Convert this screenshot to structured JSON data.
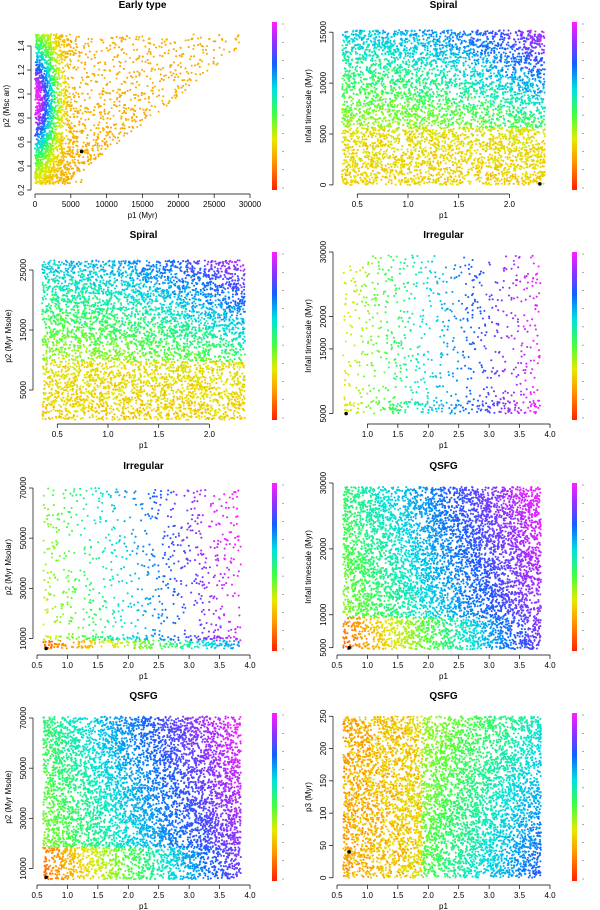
{
  "figure": {
    "description_free": true
  },
  "chart_data": [
    {
      "type": "scatter",
      "title": "Early type",
      "xlabel": "p1 (Myr)",
      "ylabel": "p2 (Msc an)",
      "xlim": [
        0,
        30000
      ],
      "ylim": [
        0.2,
        1.6
      ],
      "xticks": [
        0,
        5000,
        10000,
        15000,
        20000,
        25000,
        30000
      ],
      "xtick_labels": [
        "0",
        "5000",
        "10000",
        "15000",
        "20000",
        "25000",
        "30000"
      ],
      "yticks": [
        0.2,
        0.4,
        0.6,
        0.8,
        1.0,
        1.2,
        1.4
      ],
      "ytick_labels": [
        "0.2",
        "0.4",
        "0.6",
        "0.8",
        "1.0",
        "1.2",
        "1.4"
      ],
      "colorbar": "rainbow",
      "best_fit": [
        6500,
        0.52
      ],
      "seed": 11
    },
    {
      "type": "scatter",
      "title": "Spiral",
      "xlabel": "p1",
      "ylabel": "Infall timescale (Myr)",
      "xlim": [
        0.3,
        2.4
      ],
      "ylim": [
        -500,
        16000
      ],
      "xticks": [
        0.5,
        1.0,
        1.5,
        2.0
      ],
      "xtick_labels": [
        "0.5",
        "1.0",
        "1.5",
        "2.0"
      ],
      "yticks": [
        0,
        5000,
        10000,
        15000
      ],
      "ytick_labels": [
        "0",
        "5000",
        "10000",
        "15000"
      ],
      "colorbar": "rainbow",
      "best_fit": [
        2.3,
        100
      ],
      "seed": 23
    },
    {
      "type": "scatter",
      "title": "Spiral",
      "xlabel": "p1",
      "ylabel": "p2 (Myr Msole)",
      "xlim": [
        0.3,
        2.4
      ],
      "ylim": [
        0,
        28000
      ],
      "xticks": [
        0.5,
        1.0,
        1.5,
        2.0
      ],
      "xtick_labels": [
        "0.5",
        "1.0",
        "1.5",
        "2.0"
      ],
      "yticks": [
        5000,
        15000,
        25000
      ],
      "ytick_labels": [
        "5000",
        "15000",
        "25000"
      ],
      "colorbar": "rainbow",
      "best_fit": null,
      "seed": 37
    },
    {
      "type": "scatter",
      "title": "Irregular",
      "xlabel": "p1",
      "ylabel": "Infall timescale (Myr)",
      "xlim": [
        0.5,
        4.0
      ],
      "ylim": [
        4000,
        30000
      ],
      "xticks": [
        1.0,
        1.5,
        2.0,
        2.5,
        3.0,
        3.5,
        4.0
      ],
      "xtick_labels": [
        "1.0",
        "1.5",
        "2.0",
        "2.5",
        "3.0",
        "3.5",
        "4.0"
      ],
      "yticks": [
        5000,
        15000,
        20000,
        30000
      ],
      "ytick_labels": [
        "5000",
        "15000",
        "20000",
        "30000"
      ],
      "colorbar": "rainbow",
      "best_fit": [
        0.65,
        5000
      ],
      "seed": 41
    },
    {
      "type": "scatter",
      "title": "Irregular",
      "xlabel": "p1",
      "ylabel": "p2 (Myr Msolar)",
      "xlim": [
        0.5,
        4.0
      ],
      "ylim": [
        5000,
        72000
      ],
      "xticks": [
        0.5,
        1.0,
        1.5,
        2.0,
        2.5,
        3.0,
        3.5,
        4.0
      ],
      "xtick_labels": [
        "0.5",
        "1.0",
        "1.5",
        "2.0",
        "2.5",
        "3.0",
        "3.5",
        "4.0"
      ],
      "yticks": [
        10000,
        30000,
        50000,
        70000
      ],
      "ytick_labels": [
        "10000",
        "30000",
        "50000",
        "70000"
      ],
      "colorbar": "rainbow",
      "best_fit": [
        0.65,
        6000
      ],
      "seed": 53
    },
    {
      "type": "scatter",
      "title": "QSFG",
      "xlabel": "p1",
      "ylabel": "Infall timescale (Myr)",
      "xlim": [
        0.5,
        4.0
      ],
      "ylim": [
        4500,
        30000
      ],
      "xticks": [
        0.5,
        1.0,
        1.5,
        2.0,
        2.5,
        3.0,
        3.5,
        4.0
      ],
      "xtick_labels": [
        "0.5",
        "1.0",
        "1.5",
        "2.0",
        "2.5",
        "3.0",
        "3.5",
        "4.0"
      ],
      "yticks": [
        5000,
        10000,
        20000,
        30000
      ],
      "ytick_labels": [
        "5000",
        "10000",
        "20000",
        "30000"
      ],
      "colorbar": "rainbow",
      "best_fit": [
        0.7,
        5000
      ],
      "seed": 67
    },
    {
      "type": "scatter",
      "title": "QSFG",
      "xlabel": "p1",
      "ylabel": "p2 (Myr Msole)",
      "xlim": [
        0.5,
        4.0
      ],
      "ylim": [
        5000,
        72000
      ],
      "xticks": [
        0.5,
        1.0,
        1.5,
        2.0,
        2.5,
        3.0,
        3.5,
        4.0
      ],
      "xtick_labels": [
        "0.5",
        "1.0",
        "1.5",
        "2.0",
        "2.5",
        "3.0",
        "3.5",
        "4.0"
      ],
      "yticks": [
        10000,
        30000,
        50000,
        70000
      ],
      "ytick_labels": [
        "10000",
        "30000",
        "50000",
        "70000"
      ],
      "colorbar": "rainbow",
      "best_fit": [
        0.65,
        6500
      ],
      "seed": 79
    },
    {
      "type": "scatter",
      "title": "QSFG",
      "xlabel": "p1",
      "ylabel": "p3 (Myr)",
      "xlim": [
        0.5,
        4.0
      ],
      "ylim": [
        -5,
        255
      ],
      "xticks": [
        0.5,
        1.0,
        1.5,
        2.0,
        2.5,
        3.0,
        3.5,
        4.0
      ],
      "xtick_labels": [
        "0.5",
        "1.0",
        "1.5",
        "2.0",
        "2.5",
        "3.0",
        "3.5",
        "4.0"
      ],
      "yticks": [
        0,
        50,
        100,
        150,
        200,
        250
      ],
      "ytick_labels": [
        "0",
        "50",
        "100",
        "150",
        "200",
        "250"
      ],
      "colorbar": "rainbow",
      "best_fit": [
        0.7,
        40
      ],
      "seed": 97
    }
  ]
}
